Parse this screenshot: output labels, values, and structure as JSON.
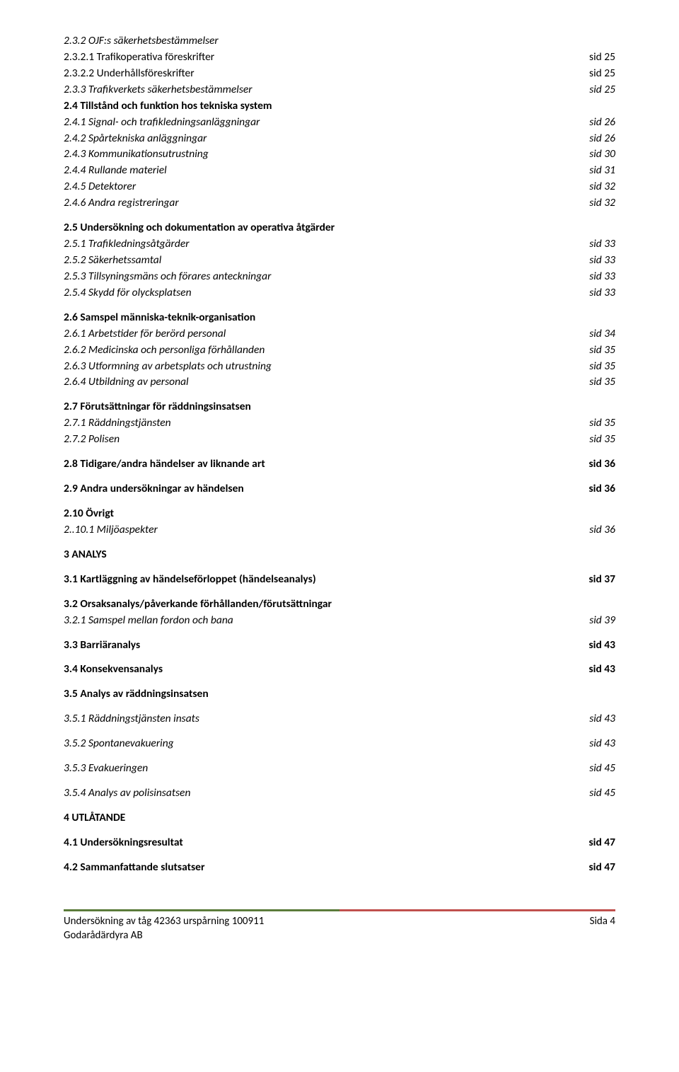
{
  "entries": [
    {
      "label": "2.3.2 OJF:s säkerhetsbestämmelser",
      "page": "",
      "style": "italic",
      "gap": false
    },
    {
      "label": "2.3.2.1 Trafikoperativa föreskrifter",
      "page": "sid 25",
      "style": "",
      "gap": false
    },
    {
      "label": "2.3.2.2 Underhållsföreskrifter",
      "page": "sid 25",
      "style": "",
      "gap": false
    },
    {
      "label": "2.3.3 Trafikverkets säkerhetsbestämmelser",
      "page": "sid 25",
      "style": "italic",
      "gap": false
    },
    {
      "label": "2.4 Tillstånd och funktion hos tekniska system",
      "page": "",
      "style": "bold",
      "gap": false
    },
    {
      "label": "2.4.1 Signal- och trafikledningsanläggningar",
      "page": "sid 26",
      "style": "italic",
      "gap": false
    },
    {
      "label": "2.4.2 Spårtekniska anläggningar",
      "page": "sid 26",
      "style": "italic",
      "gap": false
    },
    {
      "label": "2.4.3 Kommunikationsutrustning",
      "page": "sid 30",
      "style": "italic",
      "gap": false
    },
    {
      "label": "2.4.4 Rullande materiel",
      "page": "sid 31",
      "style": "italic",
      "gap": false
    },
    {
      "label": "2.4.5 Detektorer",
      "page": "sid 32",
      "style": "italic",
      "gap": false
    },
    {
      "label": "2.4.6 Andra registreringar",
      "page": "sid 32",
      "style": "italic",
      "gap": false
    },
    {
      "label": "2.5 Undersökning och dokumentation av operativa åtgärder",
      "page": "",
      "style": "bold",
      "gap": true
    },
    {
      "label": "2.5.1 Trafikledningsåtgärder",
      "page": "sid 33",
      "style": "italic",
      "gap": false
    },
    {
      "label": "2.5.2 Säkerhetssamtal",
      "page": "sid 33",
      "style": "italic",
      "gap": false
    },
    {
      "label": "2.5.3 Tillsyningsmäns och förares anteckningar",
      "page": "sid 33",
      "style": "italic",
      "gap": false
    },
    {
      "label": "2.5.4 Skydd för olycksplatsen",
      "page": "sid 33",
      "style": "italic",
      "gap": false
    },
    {
      "label": "2.6 Samspel människa-teknik-organisation",
      "page": "",
      "style": "bold",
      "gap": true
    },
    {
      "label": "2.6.1 Arbetstider för berörd personal",
      "page": "sid 34",
      "style": "italic",
      "gap": false
    },
    {
      "label": "2.6.2 Medicinska och personliga förhållanden",
      "page": "sid 35",
      "style": "italic",
      "gap": false
    },
    {
      "label": "2.6.3 Utformning av arbetsplats och utrustning",
      "page": "sid 35",
      "style": "italic",
      "gap": false
    },
    {
      "label": "2.6.4 Utbildning av personal",
      "page": "sid 35",
      "style": "italic",
      "gap": false
    },
    {
      "label": "2.7 Förutsättningar för räddningsinsatsen",
      "page": "",
      "style": "bold",
      "gap": true
    },
    {
      "label": "2.7.1 Räddningstjänsten",
      "page": "sid 35",
      "style": "italic",
      "gap": false
    },
    {
      "label": "2.7.2 Polisen",
      "page": "sid 35",
      "style": "italic",
      "gap": false
    },
    {
      "label": "2.8 Tidigare/andra händelser av liknande art",
      "page": "sid 36",
      "style": "bold",
      "gap": true
    },
    {
      "label": "2.9 Andra undersökningar av händelsen",
      "page": "sid 36",
      "style": "bold",
      "gap": true
    },
    {
      "label": "2.10 Övrigt",
      "page": "",
      "style": "bold",
      "gap": true
    },
    {
      "label": "2..10.1 Miljöaspekter",
      "page": "sid 36",
      "style": "italic",
      "gap": false
    },
    {
      "label": "3 ANALYS",
      "page": "",
      "style": "bold",
      "gap": true
    },
    {
      "label": "3.1 Kartläggning av händelseförloppet (händelseanalys)",
      "page": "sid 37",
      "style": "bold",
      "gap": true
    },
    {
      "label": "3.2 Orsaksanalys/påverkande förhållanden/förutsättningar",
      "page": "",
      "style": "bold",
      "gap": true
    },
    {
      "label": "3.2.1 Samspel mellan fordon och bana",
      "page": "sid 39",
      "style": "italic",
      "gap": false
    },
    {
      "label": "3.3 Barriäranalys",
      "page": "sid 43",
      "style": "bold",
      "gap": true
    },
    {
      "label": "3.4 Konsekvensanalys",
      "page": "sid 43",
      "style": "bold",
      "gap": true
    },
    {
      "label": "3.5 Analys av räddningsinsatsen",
      "page": "",
      "style": "bold",
      "gap": true
    },
    {
      "label": "3.5.1 Räddningstjänsten insats",
      "page": "sid 43",
      "style": "italic",
      "gap": true
    },
    {
      "label": "3.5.2 Spontanevakuering",
      "page": "sid 43",
      "style": "italic",
      "gap": true
    },
    {
      "label": "3.5.3 Evakueringen",
      "page": "sid 45",
      "style": "italic",
      "gap": true
    },
    {
      "label": "3.5.4 Analys av polisinsatsen",
      "page": "sid 45",
      "style": "italic",
      "gap": true
    },
    {
      "label": "4 UTLÅTANDE",
      "page": "",
      "style": "bold",
      "gap": true
    },
    {
      "label": "4.1 Undersökningsresultat",
      "page": "sid 47",
      "style": "bold",
      "gap": true
    },
    {
      "label": "4.2 Sammanfattande slutsatser",
      "page": "sid 47",
      "style": "bold",
      "gap": true
    }
  ],
  "footer": {
    "left_line1": "Undersökning av tåg 42363 urspårning 100911",
    "left_line2": "Godarådärdyra AB",
    "right": "Sida 4"
  },
  "colors": {
    "text": "#000000",
    "background": "#ffffff",
    "border_left": "#5b7b3a",
    "border_right": "#c0504d"
  }
}
